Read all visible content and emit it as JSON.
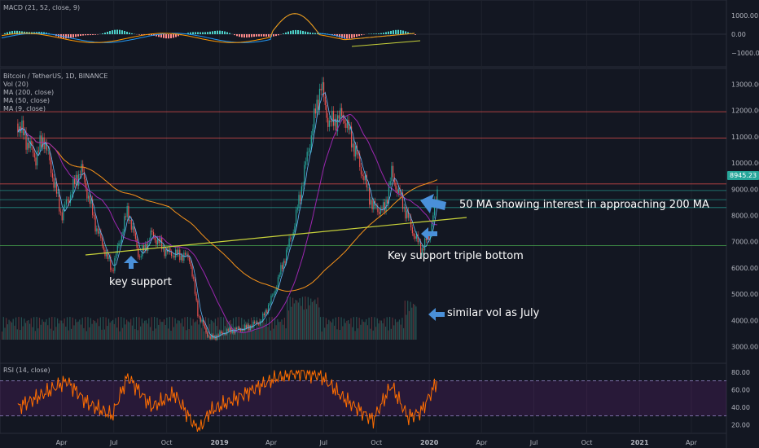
{
  "macd": {
    "label": "MACD (21, 52, close, 9)",
    "ticks": [
      "1000.00",
      "0.00",
      "−1000.00"
    ]
  },
  "main": {
    "legend": [
      "Bitcoin / TetherUS, 1D, BINANCE",
      "Vol (20)",
      "MA (200, close)",
      "MA (50, close)",
      "MA (9, close)"
    ],
    "ticks": [
      "13000.00",
      "12000.00",
      "11000.00",
      "10000.00",
      "9000.00",
      "8000.00",
      "7000.00",
      "6000.00",
      "5000.00",
      "4000.00",
      "3000.00"
    ],
    "last_price": "8945.23"
  },
  "rsi": {
    "label": "RSI (14, close)",
    "ticks": [
      "80.00",
      "60.00",
      "40.00",
      "20.00"
    ]
  },
  "xaxis": [
    "Apr",
    "Jul",
    "Oct",
    "2019",
    "Apr",
    "Jul",
    "Oct",
    "2020",
    "Apr",
    "Jul",
    "Oct",
    "2021",
    "Apr"
  ],
  "annotations": {
    "ma_note": "50 MA showing interest in approaching 200 MA",
    "triple_bottom": "Key support triple bottom",
    "key_support": "key support",
    "vol_note": "similar vol as July"
  },
  "colors": {
    "background": "#131722",
    "candle_up": "#26a69a",
    "candle_down": "#ef5350",
    "ma200": "#f7931a",
    "ma50": "#9c27b0",
    "ma9": "#64b5f6",
    "support_line": "#c8d23a",
    "rsi_line": "#ff6d00",
    "arrow": "#4a90d9"
  },
  "chart_data": [
    {
      "type": "line",
      "title": "Bitcoin / TetherUS, 1D, BINANCE",
      "x": [
        "2018-01-15",
        "2018-02-15",
        "2018-03-01",
        "2018-04-01",
        "2018-05-05",
        "2018-06-01",
        "2018-06-28",
        "2018-07-25",
        "2018-08-15",
        "2018-09-05",
        "2018-10-01",
        "2018-11-10",
        "2018-11-25",
        "2018-12-15",
        "2019-01-15",
        "2019-02-15",
        "2019-03-15",
        "2019-04-05",
        "2019-05-10",
        "2019-06-26",
        "2019-07-10",
        "2019-08-05",
        "2019-09-01",
        "2019-09-25",
        "2019-10-15",
        "2019-10-27",
        "2019-11-15",
        "2019-12-05",
        "2019-12-18",
        "2020-01-01",
        "2020-01-15"
      ],
      "series": [
        {
          "values": [
            11500,
            10200,
            11000,
            8000,
            9800,
            7500,
            5900,
            8200,
            6400,
            7300,
            6600,
            6400,
            4200,
            3300,
            3600,
            3700,
            4000,
            5000,
            7500,
            13000,
            11500,
            11800,
            10000,
            8300,
            8200,
            9600,
            8500,
            7300,
            6700,
            7200,
            8900
          ]
        }
      ],
      "ylim": [
        2400,
        13600
      ],
      "xlabel": "",
      "ylabel": ""
    },
    {
      "type": "line",
      "title": "RSI (14, close)",
      "x": [
        "2018-01-15",
        "2018-03-01",
        "2018-04-10",
        "2018-05-15",
        "2018-06-28",
        "2018-07-25",
        "2018-09-05",
        "2018-10-15",
        "2018-11-25",
        "2018-12-15",
        "2019-01-30",
        "2019-04-05",
        "2019-05-15",
        "2019-06-26",
        "2019-08-05",
        "2019-09-25",
        "2019-10-27",
        "2019-11-25",
        "2019-12-18",
        "2020-01-15"
      ],
      "series": [
        {
          "values": [
            40,
            55,
            70,
            45,
            30,
            75,
            40,
            55,
            12,
            35,
            50,
            72,
            80,
            76,
            50,
            25,
            65,
            28,
            35,
            70
          ]
        }
      ],
      "ylim": [
        10,
        90
      ],
      "xlabel": "",
      "ylabel": ""
    }
  ]
}
